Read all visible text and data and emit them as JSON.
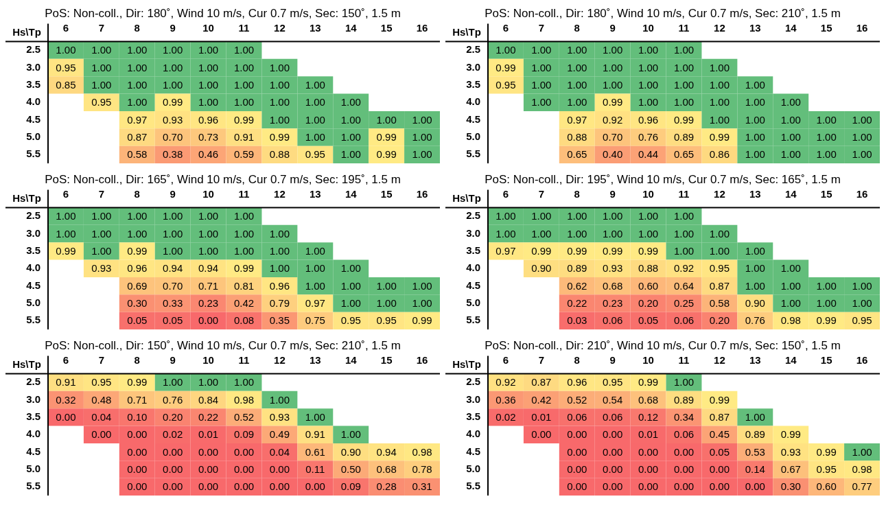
{
  "chart_data": [
    {
      "type": "heatmap",
      "title": "PoS: Non-coll., Dir: 180˚, Wind 10 m/s, Cur 0.7 m/s, Sec: 150˚, 1.5 m",
      "ylabel": "Hs\\Tp",
      "categories": [
        "6",
        "7",
        "8",
        "9",
        "10",
        "11",
        "12",
        "13",
        "14",
        "15",
        "16"
      ],
      "y_categories": [
        "2.5",
        "3.0",
        "3.5",
        "4.0",
        "4.5",
        "5.0",
        "5.5"
      ],
      "cells": [
        [
          1,
          1,
          1,
          1,
          1,
          1,
          null,
          null,
          null,
          null,
          null
        ],
        [
          0.95,
          1,
          1,
          1,
          1,
          1,
          1,
          null,
          null,
          null,
          null
        ],
        [
          0.85,
          1,
          1,
          1,
          1,
          1,
          1,
          1,
          null,
          null,
          null
        ],
        [
          null,
          0.95,
          1,
          0.99,
          1,
          1,
          1,
          1,
          1,
          null,
          null
        ],
        [
          null,
          null,
          0.97,
          0.93,
          0.96,
          0.99,
          1,
          1,
          1,
          1,
          1
        ],
        [
          null,
          null,
          0.87,
          0.7,
          0.73,
          0.91,
          0.99,
          1,
          1,
          0.99,
          1
        ],
        [
          null,
          null,
          0.58,
          0.38,
          0.46,
          0.59,
          0.88,
          0.95,
          1,
          0.99,
          1
        ]
      ],
      "cell_labels": [
        [
          "1.00",
          "1.00",
          "1.00",
          "1.00",
          "1.00",
          "1.00",
          null,
          null,
          null,
          null,
          null
        ],
        [
          "0.95",
          "1.00",
          "1.00",
          "1.00",
          "1.00",
          "1.00",
          "1.00",
          null,
          null,
          null,
          null
        ],
        [
          "0.85",
          "1.00",
          "1.00",
          "1.00",
          "1.00",
          "1.00",
          "1.00",
          "1.00",
          null,
          null,
          null
        ],
        [
          null,
          "0.95",
          "1.00",
          "0.99",
          "1.00",
          "1.00",
          "1.00",
          "1.00",
          "1.00",
          null,
          null
        ],
        [
          null,
          null,
          "0.97",
          "0.93",
          "0.96",
          "0.99",
          "1.00",
          "1.00",
          "1.00",
          "1.00",
          "1.00"
        ],
        [
          null,
          null,
          "0.87",
          "0.70",
          "0.73",
          "0.91",
          "0.99",
          "1.00",
          "1.00",
          "0.99",
          "1.00"
        ],
        [
          null,
          null,
          "0.58",
          "0.38",
          "0.46",
          "0.59",
          "0.88",
          "0.95",
          "1.00",
          "0.99",
          "1.00"
        ]
      ]
    },
    {
      "type": "heatmap",
      "title": "PoS: Non-coll., Dir: 180˚, Wind 10 m/s, Cur 0.7 m/s, Sec: 210˚, 1.5 m",
      "ylabel": "Hs\\Tp",
      "categories": [
        "6",
        "7",
        "8",
        "9",
        "10",
        "11",
        "12",
        "13",
        "14",
        "15",
        "16"
      ],
      "y_categories": [
        "2.5",
        "3.0",
        "3.5",
        "4.0",
        "4.5",
        "5.0",
        "5.5"
      ],
      "cells": [
        [
          1,
          1,
          1,
          1,
          1,
          1,
          null,
          null,
          null,
          null,
          null
        ],
        [
          0.99,
          1,
          1,
          1,
          1,
          1,
          1,
          null,
          null,
          null,
          null
        ],
        [
          0.95,
          1,
          1,
          1,
          1,
          1,
          1,
          1,
          null,
          null,
          null
        ],
        [
          null,
          1,
          1,
          0.99,
          1,
          1,
          1,
          1,
          1,
          null,
          null
        ],
        [
          null,
          null,
          0.97,
          0.92,
          0.96,
          0.99,
          1,
          1,
          1,
          1,
          1
        ],
        [
          null,
          null,
          0.88,
          0.7,
          0.76,
          0.89,
          0.99,
          1,
          1,
          1,
          1
        ],
        [
          null,
          null,
          0.65,
          0.4,
          0.44,
          0.65,
          0.86,
          1,
          1,
          1,
          1
        ]
      ],
      "cell_labels": [
        [
          "1.00",
          "1.00",
          "1.00",
          "1.00",
          "1.00",
          "1.00",
          null,
          null,
          null,
          null,
          null
        ],
        [
          "0.99",
          "1.00",
          "1.00",
          "1.00",
          "1.00",
          "1.00",
          "1.00",
          null,
          null,
          null,
          null
        ],
        [
          "0.95",
          "1.00",
          "1.00",
          "1.00",
          "1.00",
          "1.00",
          "1.00",
          "1.00",
          null,
          null,
          null
        ],
        [
          null,
          "1.00",
          "1.00",
          "0.99",
          "1.00",
          "1.00",
          "1.00",
          "1.00",
          "1.00",
          null,
          null
        ],
        [
          null,
          null,
          "0.97",
          "0.92",
          "0.96",
          "0.99",
          "1.00",
          "1.00",
          "1.00",
          "1.00",
          "1.00"
        ],
        [
          null,
          null,
          "0.88",
          "0.70",
          "0.76",
          "0.89",
          "0.99",
          "1.00",
          "1.00",
          "1.00",
          "1.00"
        ],
        [
          null,
          null,
          "0.65",
          "0.40",
          "0.44",
          "0.65",
          "0.86",
          "1.00",
          "1.00",
          "1.00",
          "1.00"
        ]
      ]
    },
    {
      "type": "heatmap",
      "title": "PoS: Non-coll., Dir: 165˚, Wind 10 m/s, Cur 0.7 m/s, Sec: 195˚, 1.5 m",
      "ylabel": "Hs\\Tp",
      "categories": [
        "6",
        "7",
        "8",
        "9",
        "10",
        "11",
        "12",
        "13",
        "14",
        "15",
        "16"
      ],
      "y_categories": [
        "2.5",
        "3.0",
        "3.5",
        "4.0",
        "4.5",
        "5.0",
        "5.5"
      ],
      "cells": [
        [
          1,
          1,
          1,
          1,
          1,
          1,
          null,
          null,
          null,
          null,
          null
        ],
        [
          1,
          1,
          1,
          1,
          1,
          1,
          1,
          null,
          null,
          null,
          null
        ],
        [
          0.99,
          1,
          0.99,
          1,
          1,
          1,
          1,
          1,
          null,
          null,
          null
        ],
        [
          null,
          0.93,
          0.96,
          0.94,
          0.94,
          0.99,
          1,
          1,
          1,
          null,
          null
        ],
        [
          null,
          null,
          0.69,
          0.7,
          0.71,
          0.81,
          0.96,
          1,
          1,
          1,
          1
        ],
        [
          null,
          null,
          0.3,
          0.33,
          0.23,
          0.42,
          0.79,
          0.97,
          1,
          1,
          1
        ],
        [
          null,
          null,
          0.05,
          0.05,
          0.0,
          0.08,
          0.35,
          0.75,
          0.95,
          0.95,
          0.99
        ]
      ],
      "cell_labels": [
        [
          "1.00",
          "1.00",
          "1.00",
          "1.00",
          "1.00",
          "1.00",
          null,
          null,
          null,
          null,
          null
        ],
        [
          "1.00",
          "1.00",
          "1.00",
          "1.00",
          "1.00",
          "1.00",
          "1.00",
          null,
          null,
          null,
          null
        ],
        [
          "0.99",
          "1.00",
          "0.99",
          "1.00",
          "1.00",
          "1.00",
          "1.00",
          "1.00",
          null,
          null,
          null
        ],
        [
          null,
          "0.93",
          "0.96",
          "0.94",
          "0.94",
          "0.99",
          "1.00",
          "1.00",
          "1.00",
          null,
          null
        ],
        [
          null,
          null,
          "0.69",
          "0.70",
          "0.71",
          "0.81",
          "0.96",
          "1.00",
          "1.00",
          "1.00",
          "1.00"
        ],
        [
          null,
          null,
          "0.30",
          "0.33",
          "0.23",
          "0.42",
          "0.79",
          "0.97",
          "1.00",
          "1.00",
          "1.00"
        ],
        [
          null,
          null,
          "0.05",
          "0.05",
          "0.00",
          "0.08",
          "0.35",
          "0.75",
          "0.95",
          "0.95",
          "0.99"
        ]
      ]
    },
    {
      "type": "heatmap",
      "title": "PoS: Non-coll., Dir: 195˚, Wind 10 m/s, Cur 0.7 m/s, Sec: 165˚, 1.5 m",
      "ylabel": "Hs\\Tp",
      "categories": [
        "6",
        "7",
        "8",
        "9",
        "10",
        "11",
        "12",
        "13",
        "14",
        "15",
        "16"
      ],
      "y_categories": [
        "2.5",
        "3.0",
        "3.5",
        "4.0",
        "4.5",
        "5.0",
        "5.5"
      ],
      "cells": [
        [
          1,
          1,
          1,
          1,
          1,
          1,
          null,
          null,
          null,
          null,
          null
        ],
        [
          1,
          1,
          1,
          1,
          1,
          1,
          1,
          null,
          null,
          null,
          null
        ],
        [
          0.97,
          0.99,
          0.99,
          0.99,
          0.99,
          1,
          1,
          1,
          null,
          null,
          null
        ],
        [
          null,
          0.9,
          0.89,
          0.93,
          0.88,
          0.92,
          0.95,
          1,
          1,
          null,
          null
        ],
        [
          null,
          null,
          0.62,
          0.68,
          0.6,
          0.64,
          0.87,
          1,
          1,
          1,
          1
        ],
        [
          null,
          null,
          0.22,
          0.23,
          0.2,
          0.25,
          0.58,
          0.9,
          1,
          1,
          1
        ],
        [
          null,
          null,
          0.03,
          0.06,
          0.05,
          0.06,
          0.2,
          0.76,
          0.98,
          0.99,
          0.95
        ]
      ],
      "cell_labels": [
        [
          "1.00",
          "1.00",
          "1.00",
          "1.00",
          "1.00",
          "1.00",
          null,
          null,
          null,
          null,
          null
        ],
        [
          "1.00",
          "1.00",
          "1.00",
          "1.00",
          "1.00",
          "1.00",
          "1.00",
          null,
          null,
          null,
          null
        ],
        [
          "0.97",
          "0.99",
          "0.99",
          "0.99",
          "0.99",
          "1.00",
          "1.00",
          "1.00",
          null,
          null,
          null
        ],
        [
          null,
          "0.90",
          "0.89",
          "0.93",
          "0.88",
          "0.92",
          "0.95",
          "1.00",
          "1.00",
          null,
          null
        ],
        [
          null,
          null,
          "0.62",
          "0.68",
          "0.60",
          "0.64",
          "0.87",
          "1.00",
          "1.00",
          "1.00",
          "1.00"
        ],
        [
          null,
          null,
          "0.22",
          "0.23",
          "0.20",
          "0.25",
          "0.58",
          "0.90",
          "1.00",
          "1.00",
          "1.00"
        ],
        [
          null,
          null,
          "0.03",
          "0.06",
          "0.05",
          "0.06",
          "0.20",
          "0.76",
          "0.98",
          "0.99",
          "0.95"
        ]
      ]
    },
    {
      "type": "heatmap",
      "title": "PoS: Non-coll., Dir: 150˚, Wind 10 m/s, Cur 0.7 m/s, Sec: 210˚, 1.5 m",
      "ylabel": "Hs\\Tp",
      "categories": [
        "6",
        "7",
        "8",
        "9",
        "10",
        "11",
        "12",
        "13",
        "14",
        "15",
        "16"
      ],
      "y_categories": [
        "2.5",
        "3.0",
        "3.5",
        "4.0",
        "4.5",
        "5.0",
        "5.5"
      ],
      "cells": [
        [
          0.91,
          0.95,
          0.99,
          1,
          1,
          1,
          null,
          null,
          null,
          null,
          null
        ],
        [
          0.32,
          0.48,
          0.71,
          0.76,
          0.84,
          0.98,
          1,
          null,
          null,
          null,
          null
        ],
        [
          0,
          0.04,
          0.1,
          0.2,
          0.22,
          0.52,
          0.93,
          1,
          null,
          null,
          null
        ],
        [
          null,
          0,
          0,
          0.02,
          0.01,
          0.09,
          0.49,
          0.91,
          1,
          null,
          null
        ],
        [
          null,
          null,
          0,
          0,
          0,
          0,
          0.04,
          0.61,
          0.9,
          0.94,
          0.98
        ],
        [
          null,
          null,
          0,
          0,
          0,
          0,
          0,
          0.11,
          0.5,
          0.68,
          0.78
        ],
        [
          null,
          null,
          0,
          0,
          0,
          0,
          0,
          0,
          0.09,
          0.28,
          0.31
        ]
      ],
      "cell_labels": [
        [
          "0.91",
          "0.95",
          "0.99",
          "1.00",
          "1.00",
          "1.00",
          null,
          null,
          null,
          null,
          null
        ],
        [
          "0.32",
          "0.48",
          "0.71",
          "0.76",
          "0.84",
          "0.98",
          "1.00",
          null,
          null,
          null,
          null
        ],
        [
          "0.00",
          "0.04",
          "0.10",
          "0.20",
          "0.22",
          "0.52",
          "0.93",
          "1.00",
          null,
          null,
          null
        ],
        [
          null,
          "0.00",
          "0.00",
          "0.02",
          "0.01",
          "0.09",
          "0.49",
          "0.91",
          "1.00",
          null,
          null
        ],
        [
          null,
          null,
          "0.00",
          "0.00",
          "0.00",
          "0.00",
          "0.04",
          "0.61",
          "0.90",
          "0.94",
          "0.98"
        ],
        [
          null,
          null,
          "0.00",
          "0.00",
          "0.00",
          "0.00",
          "0.00",
          "0.11",
          "0.50",
          "0.68",
          "0.78"
        ],
        [
          null,
          null,
          "0.00",
          "0.00",
          "0.00",
          "0.00",
          "0.00",
          "0.00",
          "0.09",
          "0.28",
          "0.31"
        ]
      ]
    },
    {
      "type": "heatmap",
      "title": "PoS: Non-coll., Dir: 210˚, Wind 10 m/s, Cur 0.7 m/s, Sec: 150˚, 1.5 m",
      "ylabel": "Hs\\Tp",
      "categories": [
        "6",
        "7",
        "8",
        "9",
        "10",
        "11",
        "12",
        "13",
        "14",
        "15",
        "16"
      ],
      "y_categories": [
        "2.5",
        "3.0",
        "3.5",
        "4.0",
        "4.5",
        "5.0",
        "5.5"
      ],
      "cells": [
        [
          0.92,
          0.87,
          0.96,
          0.95,
          0.99,
          1,
          null,
          null,
          null,
          null,
          null
        ],
        [
          0.36,
          0.42,
          0.52,
          0.54,
          0.68,
          0.89,
          0.99,
          null,
          null,
          null,
          null
        ],
        [
          0.02,
          0.01,
          0.06,
          0.06,
          0.12,
          0.34,
          0.87,
          1,
          null,
          null,
          null
        ],
        [
          null,
          0,
          0,
          0,
          0.01,
          0.06,
          0.45,
          0.89,
          0.99,
          null,
          null
        ],
        [
          null,
          null,
          0,
          0,
          0,
          0,
          0.05,
          0.53,
          0.93,
          0.99,
          1
        ],
        [
          null,
          null,
          0,
          0,
          0,
          0,
          0,
          0.14,
          0.67,
          0.95,
          0.98
        ],
        [
          null,
          null,
          0,
          0,
          0,
          0,
          0,
          0,
          0.3,
          0.6,
          0.77
        ]
      ],
      "cell_labels": [
        [
          "0.92",
          "0.87",
          "0.96",
          "0.95",
          "0.99",
          "1.00",
          null,
          null,
          null,
          null,
          null
        ],
        [
          "0.36",
          "0.42",
          "0.52",
          "0.54",
          "0.68",
          "0.89",
          "0.99",
          null,
          null,
          null,
          null
        ],
        [
          "0.02",
          "0.01",
          "0.06",
          "0.06",
          "0.12",
          "0.34",
          "0.87",
          "1.00",
          null,
          null,
          null
        ],
        [
          null,
          "0.00",
          "0.00",
          "0.00",
          "0.01",
          "0.06",
          "0.45",
          "0.89",
          "0.99",
          null,
          null
        ],
        [
          null,
          null,
          "0.00",
          "0.00",
          "0.00",
          "0.00",
          "0.05",
          "0.53",
          "0.93",
          "0.99",
          "1.00"
        ],
        [
          null,
          null,
          "0.00",
          "0.00",
          "0.00",
          "0.00",
          "0.00",
          "0.14",
          "0.67",
          "0.95",
          "0.98"
        ],
        [
          null,
          null,
          "0.00",
          "0.00",
          "0.00",
          "0.00",
          "0.00",
          "0.00",
          "0.30",
          "0.60",
          "0.77"
        ]
      ]
    }
  ]
}
